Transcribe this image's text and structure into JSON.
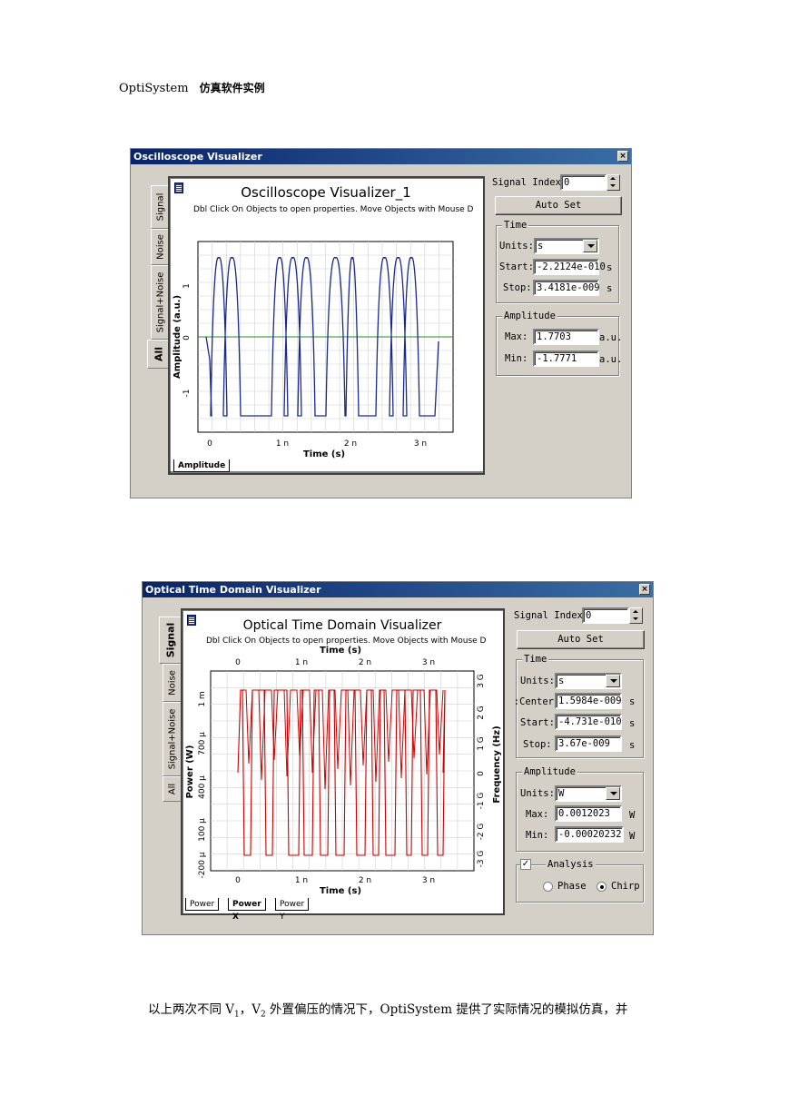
{
  "doc": {
    "header_latin": "OptiSystem",
    "header_cjk": "仿真软件实例",
    "footer_parts": [
      "以上两次不同 V",
      "1",
      "，V",
      "2",
      " 外置偏压的情况下，OptiSystem 提供了实际情况的模拟仿真，并"
    ]
  },
  "win1": {
    "title": "Oscilloscope Visualizer",
    "close": "×",
    "tabs": [
      "Signal",
      "Noise",
      "Signal+Noise",
      "All"
    ],
    "plot_title": "Oscilloscope Visualizer_1",
    "plot_hint": "Dbl Click On Objects to open properties.  Move Objects with Mouse D",
    "ylabel": "Amplitude (a.u.)",
    "xlabel": "Time (s)",
    "xticks": [
      "0",
      "1 n",
      "2 n",
      "3 n"
    ],
    "yticks": [
      "1",
      "0",
      "-1"
    ],
    "bottom_tab": "Amplitude",
    "signal_index_label": "Signal Index:",
    "signal_index": "0",
    "autoset": "Auto Set",
    "time_group": "Time",
    "units_label": "Units:",
    "units_value": "s",
    "start_label": "Start:",
    "start_value": "-2.2124e-010",
    "start_unit": "s",
    "stop_label": "Stop:",
    "stop_value": "3.4181e-009",
    "stop_unit": "s",
    "amp_group": "Amplitude",
    "max_label": "Max:",
    "max_value": "1.7703",
    "max_unit": "a.u.",
    "min_label": "Min:",
    "min_value": "-1.7771",
    "min_unit": "a.u."
  },
  "win2": {
    "title": "Optical Time Domain Visualizer",
    "close": "×",
    "tabs": [
      "Signal",
      "Noise",
      "Signal+Noise",
      "All"
    ],
    "plot_title": "Optical Time Domain Visualizer",
    "plot_hint": "Dbl Click On Objects to open properties.  Move Objects with Mouse D",
    "top_xlabel": "Time (s)",
    "xlabel": "Time (s)",
    "ylabel": "Power (W)",
    "y2label": "Frequency (Hz)",
    "xticks": [
      "0",
      "1 n",
      "2 n",
      "3 n"
    ],
    "yticks": [
      "1 m",
      "700 μ",
      "400 μ",
      "100 μ",
      "-200 μ"
    ],
    "y2ticks": [
      "3 G",
      "2 G",
      "1 G",
      "0",
      "-1 G",
      "-2 G",
      "-3 G"
    ],
    "bottom_tabs": [
      "Power",
      "Power X",
      "Power Y"
    ],
    "signal_index_label": "Signal Index:",
    "signal_index": "0",
    "autoset": "Auto Set",
    "time_group": "Time",
    "units_label": "Units:",
    "units_value": "s",
    "center_label": "Center:",
    "center_value": "1.5984e-009",
    "center_unit": "s",
    "start_label": "Start:",
    "start_value": "-4.731e-010",
    "start_unit": "s",
    "stop_label": "Stop:",
    "stop_value": "3.67e-009",
    "stop_unit": "s",
    "amp_group": "Amplitude",
    "amp_units_label": "Units:",
    "amp_units_value": "W",
    "max_label": "Max:",
    "max_value": "0.0012023",
    "max_unit": "W",
    "min_label": "Min:",
    "min_value": "-0.00020232",
    "min_unit": "W",
    "analysis_label": "Analysis",
    "analysis_checked": "✓",
    "phase_label": "Phase",
    "chirp_label": "Chirp"
  }
}
